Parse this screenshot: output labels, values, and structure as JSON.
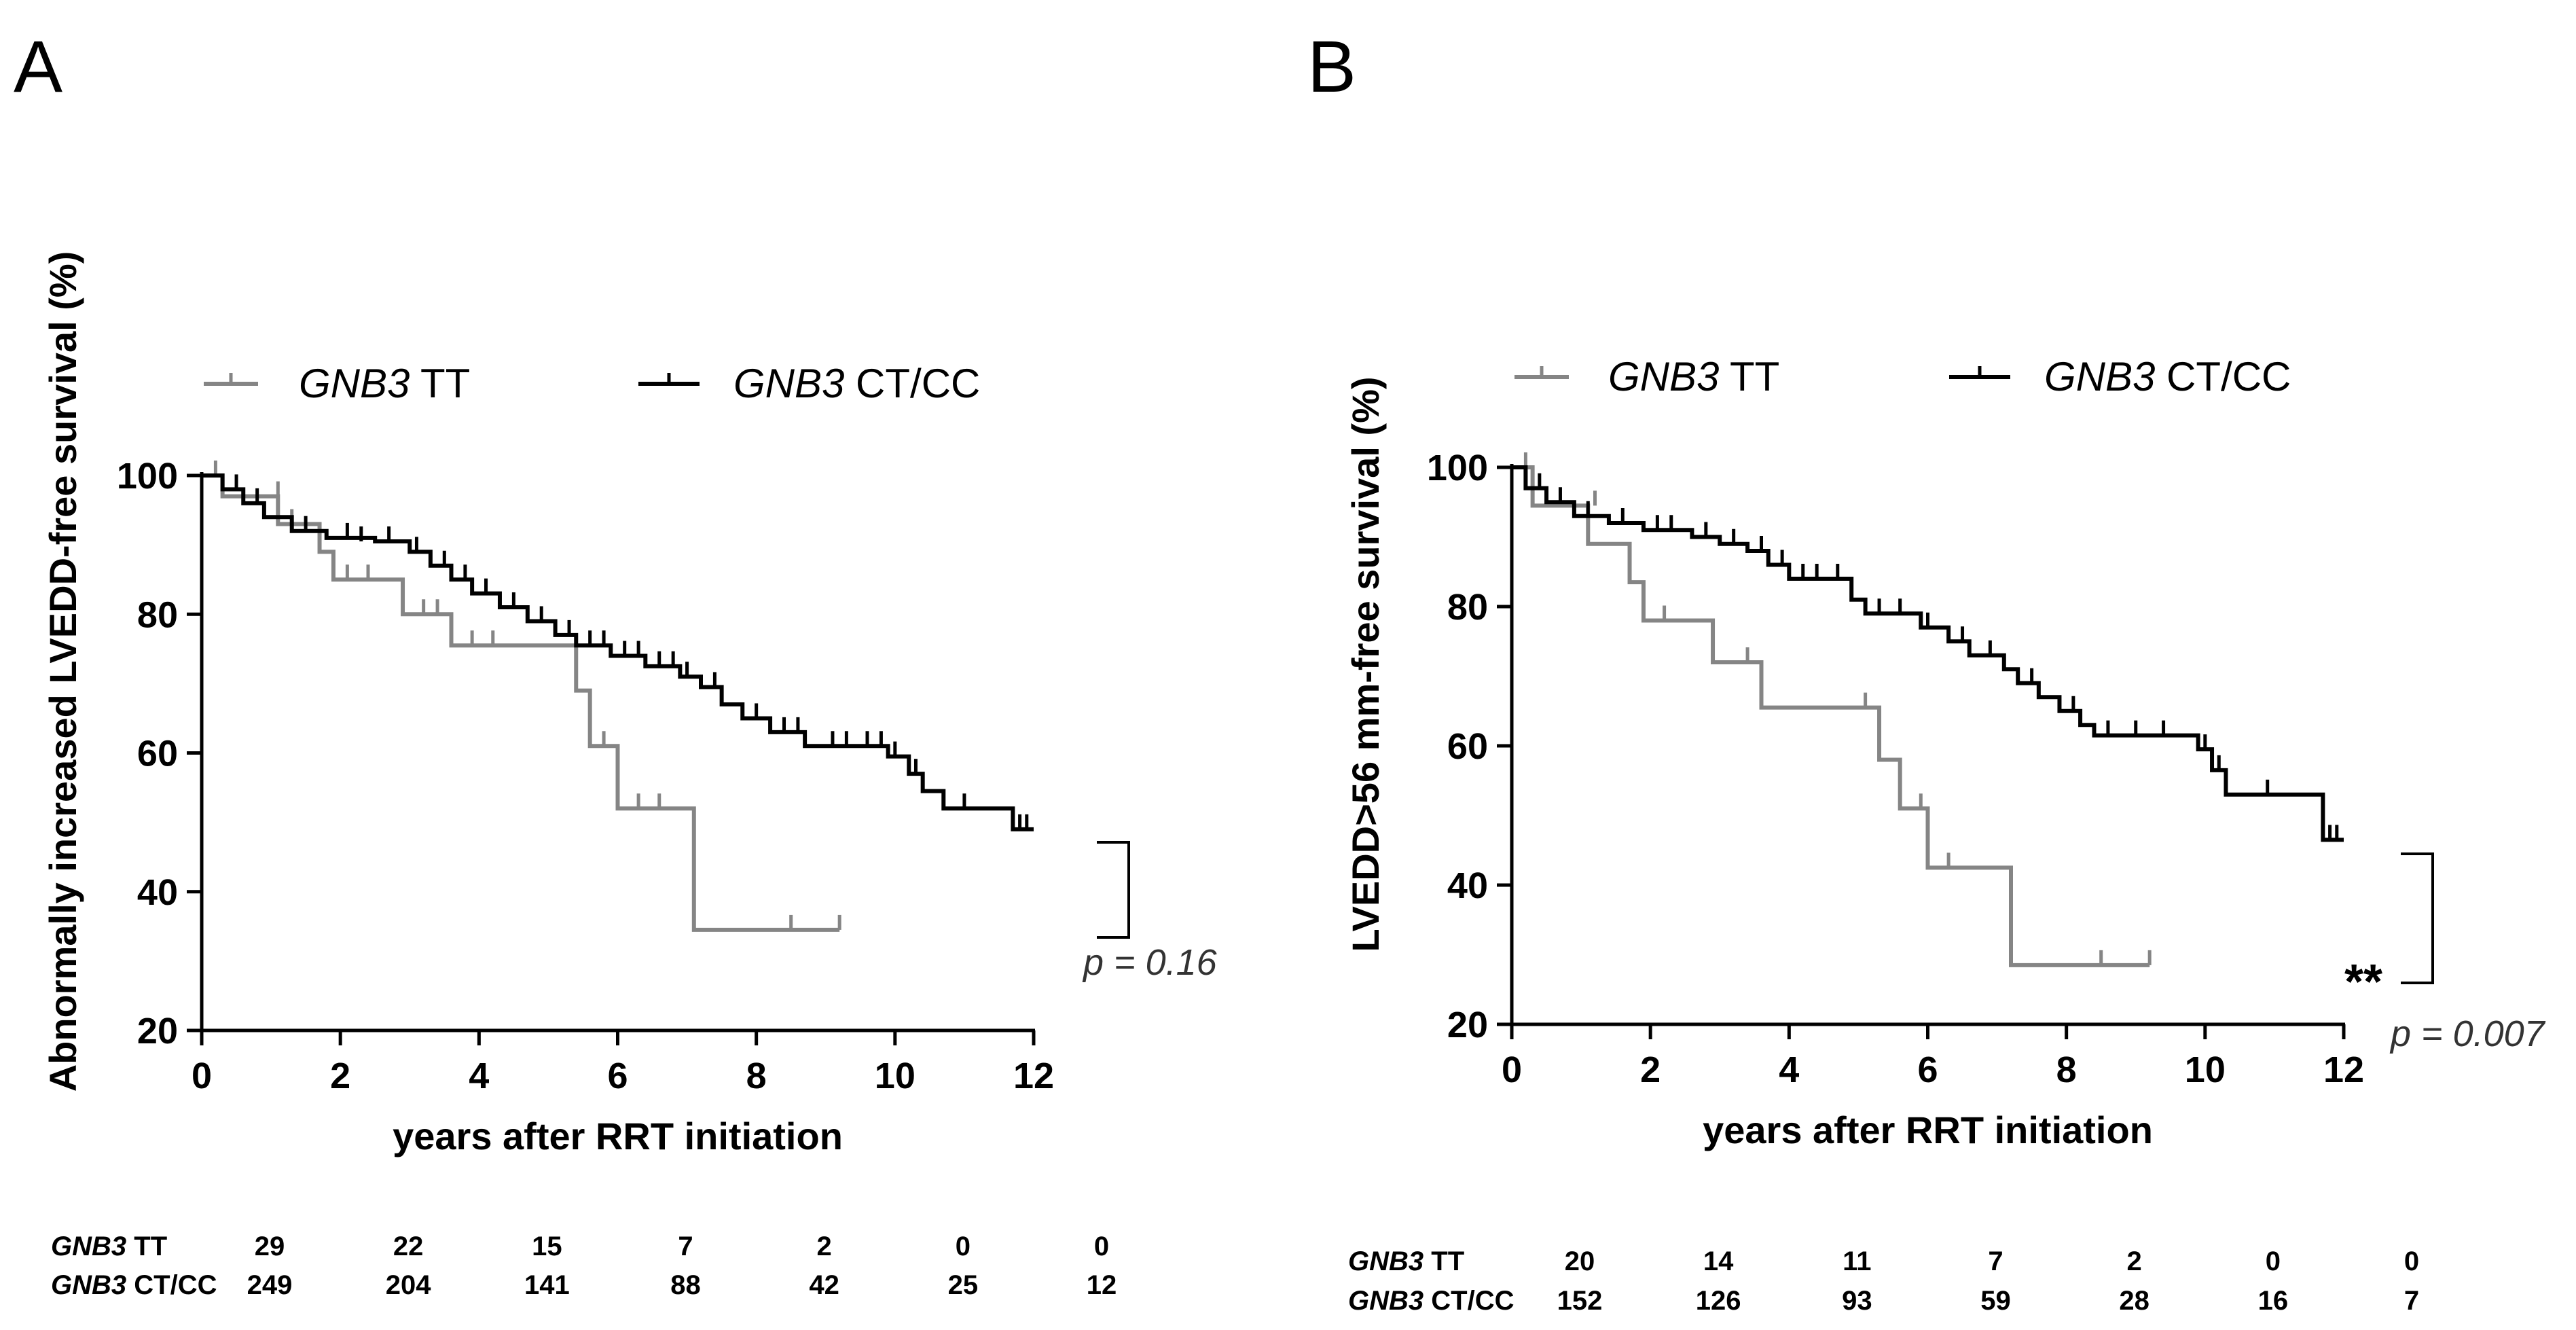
{
  "chart_data": [
    {
      "panel": "A",
      "type": "line",
      "subtype": "kaplan-meier",
      "xlabel": "years after RRT initiation",
      "ylabel": "Abnormally increased LVEDD-free survival (%)",
      "xlim": [
        0,
        12
      ],
      "ylim": [
        20,
        100
      ],
      "xticks": [
        0,
        2,
        4,
        6,
        8,
        10,
        12
      ],
      "yticks": [
        20,
        40,
        60,
        80,
        100
      ],
      "legend": [
        {
          "italic": "GNB3",
          "rest": " TT",
          "color": "#858585"
        },
        {
          "italic": "GNB3",
          "rest": " CT/CC",
          "color": "#000000"
        }
      ],
      "series": [
        {
          "name": "GNB3 TT",
          "color": "#858585",
          "steps": [
            [
              0,
              100
            ],
            [
              0.3,
              97
            ],
            [
              1.1,
              93
            ],
            [
              1.7,
              89
            ],
            [
              1.9,
              85
            ],
            [
              2.9,
              80
            ],
            [
              3.6,
              75.5
            ],
            [
              5.3,
              75.5
            ],
            [
              5.4,
              69
            ],
            [
              5.6,
              61
            ],
            [
              6.0,
              52
            ],
            [
              7.1,
              34.5
            ],
            [
              9.2,
              34.5
            ]
          ],
          "censor": [
            [
              0.2,
              100
            ],
            [
              1.1,
              97
            ],
            [
              1.3,
              93
            ],
            [
              2.1,
              85
            ],
            [
              2.4,
              85
            ],
            [
              3.2,
              80
            ],
            [
              3.4,
              80
            ],
            [
              3.9,
              75.5
            ],
            [
              4.2,
              75.5
            ],
            [
              5.8,
              61
            ],
            [
              6.3,
              52
            ],
            [
              6.6,
              52
            ],
            [
              8.5,
              34.5
            ],
            [
              9.2,
              34.5
            ]
          ]
        },
        {
          "name": "GNB3 CT/CC",
          "color": "#000000",
          "steps": [
            [
              0,
              100
            ],
            [
              0.3,
              98
            ],
            [
              0.6,
              96
            ],
            [
              0.9,
              94
            ],
            [
              1.3,
              92
            ],
            [
              1.8,
              91
            ],
            [
              2.5,
              90.5
            ],
            [
              3.0,
              89
            ],
            [
              3.3,
              87
            ],
            [
              3.6,
              85
            ],
            [
              3.9,
              83
            ],
            [
              4.3,
              81
            ],
            [
              4.7,
              79
            ],
            [
              5.1,
              77
            ],
            [
              5.4,
              75.5
            ],
            [
              5.9,
              74
            ],
            [
              6.4,
              72.5
            ],
            [
              6.9,
              71
            ],
            [
              7.2,
              69.5
            ],
            [
              7.5,
              67
            ],
            [
              7.8,
              65
            ],
            [
              8.2,
              63
            ],
            [
              8.7,
              61
            ],
            [
              9.9,
              59.5
            ],
            [
              10.2,
              57
            ],
            [
              10.4,
              54.5
            ],
            [
              10.7,
              52
            ],
            [
              11.7,
              49
            ],
            [
              12.0,
              49
            ]
          ],
          "censor": [
            [
              0.5,
              98
            ],
            [
              0.8,
              96
            ],
            [
              1.5,
              92
            ],
            [
              2.1,
              91
            ],
            [
              2.3,
              90.5
            ],
            [
              2.7,
              90.5
            ],
            [
              3.1,
              89
            ],
            [
              3.5,
              87
            ],
            [
              3.8,
              85
            ],
            [
              4.1,
              83
            ],
            [
              4.5,
              81
            ],
            [
              4.9,
              79
            ],
            [
              5.3,
              77
            ],
            [
              5.6,
              75.5
            ],
            [
              5.8,
              75.5
            ],
            [
              6.1,
              74
            ],
            [
              6.3,
              74
            ],
            [
              6.6,
              72.5
            ],
            [
              6.8,
              72.5
            ],
            [
              7.0,
              71
            ],
            [
              7.4,
              69.5
            ],
            [
              8.0,
              65
            ],
            [
              8.4,
              63
            ],
            [
              8.6,
              63
            ],
            [
              9.1,
              61
            ],
            [
              9.3,
              61
            ],
            [
              9.6,
              61
            ],
            [
              9.8,
              61
            ],
            [
              10.0,
              59.5
            ],
            [
              10.3,
              57
            ],
            [
              11.0,
              52
            ],
            [
              11.8,
              49
            ],
            [
              11.9,
              49
            ]
          ]
        }
      ],
      "annotation": {
        "text": "p = 0.16"
      },
      "risk_table": {
        "times": [
          0,
          2,
          4,
          6,
          8,
          10,
          12
        ],
        "rows": [
          {
            "italic": "GNB3",
            "rest": " TT",
            "values": [
              "29",
              "22",
              "15",
              "7",
              "2",
              "0",
              "0"
            ]
          },
          {
            "italic": "GNB3",
            "rest": " CT/CC",
            "values": [
              "249",
              "204",
              "141",
              "88",
              "42",
              "25",
              "12"
            ]
          }
        ]
      }
    },
    {
      "panel": "B",
      "type": "line",
      "subtype": "kaplan-meier",
      "xlabel": "years after RRT initiation",
      "ylabel": "LVEDD>56 mm-free survival (%)",
      "xlim": [
        0,
        12
      ],
      "ylim": [
        20,
        100
      ],
      "xticks": [
        0,
        2,
        4,
        6,
        8,
        10,
        12
      ],
      "yticks": [
        20,
        40,
        60,
        80,
        100
      ],
      "legend": [
        {
          "italic": "GNB3",
          "rest": " TT",
          "color": "#858585"
        },
        {
          "italic": "GNB3",
          "rest": " CT/CC",
          "color": "#000000"
        }
      ],
      "series": [
        {
          "name": "GNB3 TT",
          "color": "#858585",
          "steps": [
            [
              0,
              100
            ],
            [
              0.3,
              94.5
            ],
            [
              1.1,
              89
            ],
            [
              1.7,
              83.5
            ],
            [
              1.9,
              78
            ],
            [
              2.9,
              72
            ],
            [
              3.6,
              65.5
            ],
            [
              5.3,
              58
            ],
            [
              5.6,
              51
            ],
            [
              6.0,
              42.5
            ],
            [
              7.2,
              28.5
            ],
            [
              9.2,
              28.5
            ]
          ],
          "censor": [
            [
              0.2,
              100
            ],
            [
              1.2,
              94.5
            ],
            [
              2.2,
              78
            ],
            [
              3.4,
              72
            ],
            [
              5.1,
              65.5
            ],
            [
              5.9,
              51
            ],
            [
              6.3,
              42.5
            ],
            [
              8.5,
              28.5
            ],
            [
              9.2,
              28.5
            ]
          ]
        },
        {
          "name": "GNB3 CT/CC",
          "color": "#000000",
          "steps": [
            [
              0,
              100
            ],
            [
              0.2,
              97
            ],
            [
              0.5,
              95
            ],
            [
              0.9,
              93
            ],
            [
              1.4,
              92
            ],
            [
              1.9,
              91
            ],
            [
              2.6,
              90
            ],
            [
              3.0,
              89
            ],
            [
              3.4,
              88
            ],
            [
              3.7,
              86
            ],
            [
              4.0,
              84
            ],
            [
              4.9,
              81
            ],
            [
              5.1,
              79
            ],
            [
              5.9,
              77
            ],
            [
              6.3,
              75
            ],
            [
              6.6,
              73
            ],
            [
              7.1,
              71
            ],
            [
              7.3,
              69
            ],
            [
              7.6,
              67
            ],
            [
              7.9,
              65
            ],
            [
              8.2,
              63
            ],
            [
              8.4,
              61.5
            ],
            [
              9.9,
              59.5
            ],
            [
              10.1,
              56.5
            ],
            [
              10.3,
              53
            ],
            [
              11.7,
              46.5
            ],
            [
              12.0,
              46.5
            ]
          ],
          "censor": [
            [
              0.4,
              97
            ],
            [
              0.7,
              95
            ],
            [
              1.1,
              93
            ],
            [
              1.6,
              92
            ],
            [
              2.1,
              91
            ],
            [
              2.3,
              91
            ],
            [
              2.8,
              90
            ],
            [
              3.2,
              89
            ],
            [
              3.6,
              88
            ],
            [
              3.9,
              86
            ],
            [
              4.2,
              84
            ],
            [
              4.4,
              84
            ],
            [
              4.7,
              84
            ],
            [
              5.3,
              79
            ],
            [
              5.6,
              79
            ],
            [
              6.0,
              77
            ],
            [
              6.5,
              75
            ],
            [
              6.9,
              73
            ],
            [
              7.5,
              69
            ],
            [
              8.1,
              65
            ],
            [
              8.6,
              61.5
            ],
            [
              9.0,
              61.5
            ],
            [
              9.4,
              61.5
            ],
            [
              10.0,
              59.5
            ],
            [
              10.2,
              56.5
            ],
            [
              10.9,
              53
            ],
            [
              11.8,
              46.5
            ],
            [
              11.9,
              46.5
            ]
          ]
        }
      ],
      "annotation": {
        "text": "p = 0.007",
        "stars": "**"
      },
      "risk_table": {
        "times": [
          0,
          2,
          4,
          6,
          8,
          10,
          12
        ],
        "rows": [
          {
            "italic": "GNB3",
            "rest": " TT",
            "values": [
              "20",
              "14",
              "11",
              "7",
              "2",
              "0",
              "0"
            ]
          },
          {
            "italic": "GNB3",
            "rest": " CT/CC",
            "values": [
              "152",
              "126",
              "93",
              "59",
              "28",
              "16",
              "7"
            ]
          }
        ]
      }
    }
  ]
}
